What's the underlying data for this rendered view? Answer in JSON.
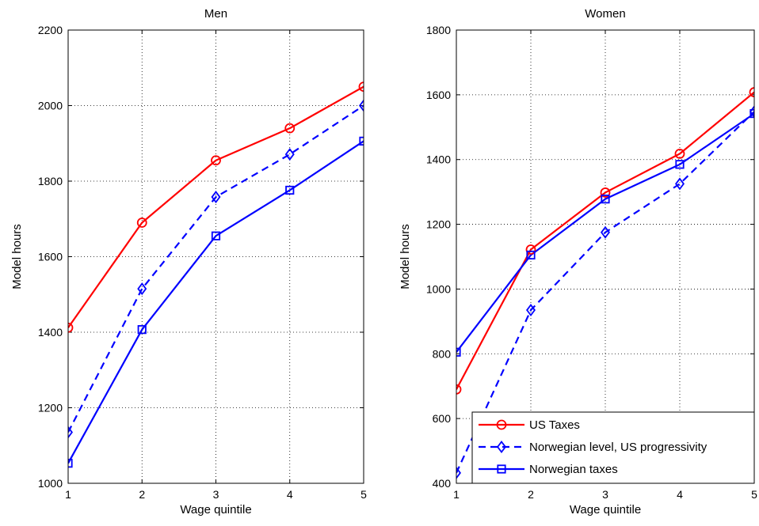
{
  "chart_data": [
    {
      "type": "line",
      "title": "Men",
      "xlabel": "Wage quintile",
      "ylabel": "Model hours",
      "x": [
        1,
        2,
        3,
        4,
        5
      ],
      "xticks": [
        "1",
        "2",
        "3",
        "4",
        "5"
      ],
      "xlim": [
        1,
        5
      ],
      "ylim": [
        1000,
        2200
      ],
      "yticks": [
        "1000",
        "1200",
        "1400",
        "1600",
        "1800",
        "2000",
        "2200"
      ],
      "grid": true,
      "series": [
        {
          "name": "US Taxes",
          "values": [
            1412,
            1690,
            1855,
            1940,
            2050
          ],
          "color": "#ff0000",
          "dash": "solid",
          "marker": "circle"
        },
        {
          "name": "Norwegian level, US progressivity",
          "values": [
            1135,
            1515,
            1758,
            1871,
            2000
          ],
          "color": "#0000ff",
          "dash": "dashed",
          "marker": "diamond"
        },
        {
          "name": "Norwegian taxes",
          "values": [
            1053,
            1407,
            1655,
            1776,
            1906
          ],
          "color": "#0000ff",
          "dash": "solid",
          "marker": "square"
        }
      ]
    },
    {
      "type": "line",
      "title": "Women",
      "xlabel": "Wage quintile",
      "ylabel": "Model hours",
      "x": [
        1,
        2,
        3,
        4,
        5
      ],
      "xticks": [
        "1",
        "2",
        "3",
        "4",
        "5"
      ],
      "xlim": [
        1,
        5
      ],
      "ylim": [
        400,
        1800
      ],
      "yticks": [
        "400",
        "600",
        "800",
        "1000",
        "1200",
        "1400",
        "1600",
        "1800"
      ],
      "grid": true,
      "legend": "bottom-right",
      "series": [
        {
          "name": "US Taxes",
          "values": [
            690,
            1122,
            1298,
            1418,
            1608
          ],
          "color": "#ff0000",
          "dash": "solid",
          "marker": "circle"
        },
        {
          "name": "Norwegian level, US progressivity",
          "values": [
            432,
            935,
            1175,
            1325,
            1548
          ],
          "color": "#0000ff",
          "dash": "dashed",
          "marker": "diamond"
        },
        {
          "name": "Norwegian taxes",
          "values": [
            805,
            1105,
            1278,
            1385,
            1542
          ],
          "color": "#0000ff",
          "dash": "solid",
          "marker": "square"
        }
      ]
    }
  ]
}
